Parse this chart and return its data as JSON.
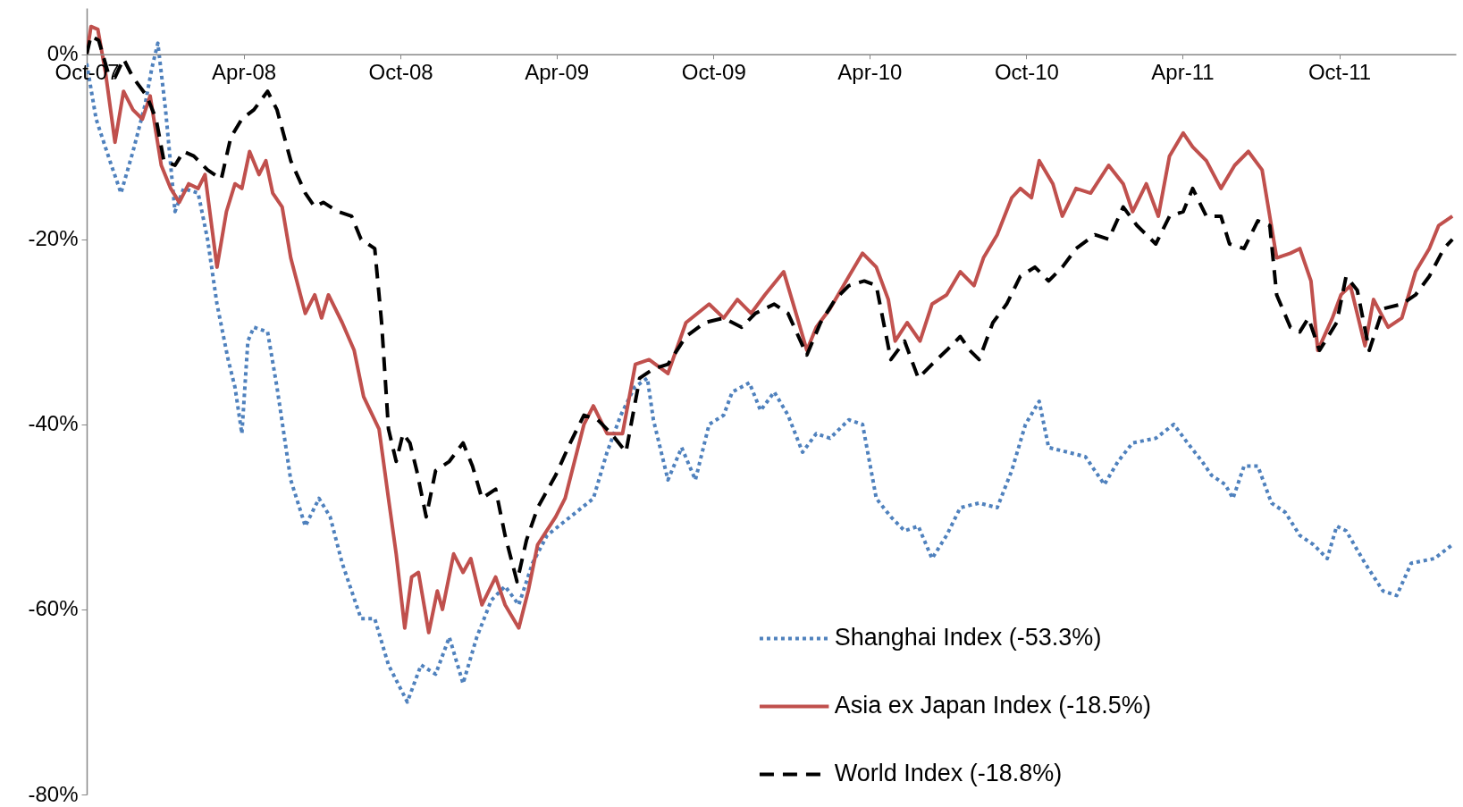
{
  "chart_data": {
    "type": "line",
    "xlim": [
      "2007-10-01",
      "2012-02-14"
    ],
    "ylim": [
      -80,
      5
    ],
    "xticks": [
      {
        "value": "2007-10-01",
        "label": "Oct-07"
      },
      {
        "value": "2008-04-01",
        "label": "Apr-08"
      },
      {
        "value": "2008-10-01",
        "label": "Oct-08"
      },
      {
        "value": "2009-04-01",
        "label": "Apr-09"
      },
      {
        "value": "2009-10-01",
        "label": "Oct-09"
      },
      {
        "value": "2010-04-01",
        "label": "Apr-10"
      },
      {
        "value": "2010-10-01",
        "label": "Oct-10"
      },
      {
        "value": "2011-04-01",
        "label": "Apr-11"
      },
      {
        "value": "2011-10-01",
        "label": "Oct-11"
      }
    ],
    "yticks": [
      {
        "value": 0,
        "label": "0%"
      },
      {
        "value": -20,
        "label": "-20%"
      },
      {
        "value": -40,
        "label": "-40%"
      },
      {
        "value": -60,
        "label": "-60%"
      },
      {
        "value": -80,
        "label": "-80%"
      }
    ],
    "legend": "bottom right",
    "series": [
      {
        "name": "Shanghai Index (-53.3%)",
        "color": "#4f81bd",
        "line_style": "dotted",
        "x": [
          "2007-10-01",
          "2007-10-12",
          "2007-10-28",
          "2007-11-10",
          "2007-11-24",
          "2007-12-08",
          "2007-12-16",
          "2007-12-23",
          "2008-01-01",
          "2008-01-12",
          "2008-01-22",
          "2008-02-08",
          "2008-02-19",
          "2008-03-01",
          "2008-03-14",
          "2008-03-22",
          "2008-03-30",
          "2008-04-06",
          "2008-04-13",
          "2008-04-29",
          "2008-05-10",
          "2008-05-26",
          "2008-06-12",
          "2008-06-28",
          "2008-07-11",
          "2008-07-25",
          "2008-08-16",
          "2008-09-01",
          "2008-09-17",
          "2008-10-09",
          "2008-10-25",
          "2008-11-11",
          "2008-11-27",
          "2008-12-13",
          "2008-12-29",
          "2009-01-15",
          "2009-01-31",
          "2009-02-16",
          "2009-03-04",
          "2009-03-21",
          "2009-04-17",
          "2009-05-14",
          "2009-05-30",
          "2009-06-15",
          "2009-07-01",
          "2009-07-16",
          "2009-07-23",
          "2009-08-09",
          "2009-08-25",
          "2009-09-10",
          "2009-09-26",
          "2009-10-13",
          "2009-10-23",
          "2009-11-12",
          "2009-11-25",
          "2009-12-11",
          "2009-12-27",
          "2010-01-13",
          "2010-01-29",
          "2010-02-14",
          "2010-03-08",
          "2010-03-24",
          "2010-04-09",
          "2010-04-26",
          "2010-05-12",
          "2010-05-28",
          "2010-06-13",
          "2010-06-30",
          "2010-07-16",
          "2010-08-07",
          "2010-08-28",
          "2010-09-14",
          "2010-09-30",
          "2010-10-16",
          "2010-10-27",
          "2010-11-18",
          "2010-12-09",
          "2010-12-31",
          "2011-01-16",
          "2011-02-02",
          "2011-03-01",
          "2011-03-22",
          "2011-04-07",
          "2011-04-24",
          "2011-05-05",
          "2011-05-21",
          "2011-05-30",
          "2011-06-12",
          "2011-06-28",
          "2011-07-14",
          "2011-07-30",
          "2011-08-16",
          "2011-09-01",
          "2011-09-17",
          "2011-09-28",
          "2011-10-09",
          "2011-10-31",
          "2011-11-21",
          "2011-12-07",
          "2011-12-24",
          "2012-01-20",
          "2012-02-10"
        ],
        "values": [
          -1,
          -7,
          -11.5,
          -15,
          -10.5,
          -5.5,
          -1.5,
          1.2,
          -6,
          -17,
          -14.5,
          -15,
          -20,
          -27,
          -33,
          -36,
          -41,
          -31,
          -29.5,
          -30,
          -36,
          -46,
          -51,
          -48,
          -50,
          -55,
          -61,
          -61,
          -66,
          -70,
          -66,
          -67,
          -63,
          -68,
          -63,
          -59,
          -57.5,
          -59.5,
          -55,
          -52,
          -50,
          -48,
          -43,
          -39,
          -36,
          -35,
          -39.5,
          -46,
          -42.5,
          -46,
          -40,
          -39,
          -36.5,
          -35.5,
          -38.5,
          -36.5,
          -39,
          -43,
          -41,
          -41.5,
          -39.5,
          -40,
          -48,
          -50,
          -51.5,
          -51,
          -54.5,
          -52,
          -49,
          -48.5,
          -49,
          -45,
          -40,
          -37.5,
          -42.5,
          -43,
          -43.5,
          -46.5,
          -44,
          -42,
          -41.5,
          -40,
          -42,
          -44,
          -45.5,
          -46.5,
          -48,
          -44.5,
          -44.5,
          -48.5,
          -49.5,
          -52,
          -53,
          -54.5,
          -51,
          -51.5,
          -55,
          -58,
          -58.5,
          -55,
          -54.5,
          -53
        ]
      },
      {
        "name": "Asia ex Japan Index (-18.5%)",
        "color": "#c0504d",
        "line_style": "solid",
        "x": [
          "2007-10-01",
          "2007-10-06",
          "2007-10-14",
          "2007-10-23",
          "2007-11-03",
          "2007-11-13",
          "2007-11-24",
          "2007-12-05",
          "2007-12-14",
          "2007-12-27",
          "2008-01-07",
          "2008-01-17",
          "2008-01-28",
          "2008-02-08",
          "2008-02-16",
          "2008-03-01",
          "2008-03-12",
          "2008-03-22",
          "2008-03-30",
          "2008-04-08",
          "2008-04-19",
          "2008-04-27",
          "2008-05-05",
          "2008-05-16",
          "2008-05-26",
          "2008-06-12",
          "2008-06-23",
          "2008-07-01",
          "2008-07-09",
          "2008-07-25",
          "2008-08-08",
          "2008-08-19",
          "2008-09-06",
          "2008-09-17",
          "2008-09-26",
          "2008-10-06",
          "2008-10-14",
          "2008-10-22",
          "2008-11-03",
          "2008-11-13",
          "2008-11-19",
          "2008-12-02",
          "2008-12-13",
          "2008-12-22",
          "2009-01-04",
          "2009-01-20",
          "2009-01-31",
          "2009-02-16",
          "2009-02-27",
          "2009-03-10",
          "2009-03-31",
          "2009-04-11",
          "2009-04-22",
          "2009-05-03",
          "2009-05-14",
          "2009-05-30",
          "2009-06-17",
          "2009-07-02",
          "2009-07-18",
          "2009-08-09",
          "2009-08-30",
          "2009-09-26",
          "2009-10-13",
          "2009-10-29",
          "2009-11-14",
          "2009-11-30",
          "2009-12-22",
          "2010-01-07",
          "2010-01-18",
          "2010-01-29",
          "2010-02-14",
          "2010-03-08",
          "2010-03-24",
          "2010-04-09",
          "2010-04-23",
          "2010-05-01",
          "2010-05-15",
          "2010-05-30",
          "2010-06-13",
          "2010-06-30",
          "2010-07-16",
          "2010-08-01",
          "2010-08-12",
          "2010-08-28",
          "2010-09-14",
          "2010-09-24",
          "2010-10-07",
          "2010-10-16",
          "2010-11-01",
          "2010-11-12",
          "2010-11-28",
          "2010-12-15",
          "2011-01-05",
          "2011-01-22",
          "2011-02-02",
          "2011-02-18",
          "2011-03-04",
          "2011-03-17",
          "2011-04-02",
          "2011-04-13",
          "2011-04-29",
          "2011-05-16",
          "2011-06-01",
          "2011-06-17",
          "2011-07-03",
          "2011-07-20",
          "2011-08-05",
          "2011-08-16",
          "2011-08-29",
          "2011-09-06",
          "2011-09-23",
          "2011-10-03",
          "2011-10-14",
          "2011-10-31",
          "2011-11-10",
          "2011-11-27",
          "2011-12-13",
          "2011-12-29",
          "2012-01-14",
          "2012-01-25",
          "2012-02-10"
        ],
        "values": [
          0,
          3,
          2.7,
          -2,
          -9.5,
          -4,
          -6,
          -7,
          -4.5,
          -12,
          -14.5,
          -16,
          -14,
          -14.5,
          -13,
          -23,
          -17,
          -14,
          -14.5,
          -10.5,
          -13,
          -11.5,
          -15,
          -16.5,
          -22,
          -28,
          -26,
          -28.5,
          -26,
          -29,
          -32,
          -37,
          -40.5,
          -48,
          -54,
          -62,
          -56.5,
          -56,
          -62.5,
          -58,
          -60,
          -54,
          -56,
          -54.5,
          -59.5,
          -56.5,
          -59.5,
          -62,
          -58,
          -53,
          -50,
          -48,
          -44,
          -40,
          -38,
          -41,
          -41,
          -33.5,
          -33,
          -34.5,
          -29,
          -27,
          -28.5,
          -26.5,
          -28,
          -26,
          -23.5,
          -28.5,
          -32,
          -29.5,
          -27.5,
          -24,
          -21.5,
          -23,
          -26.5,
          -31,
          -29,
          -31,
          -27,
          -26,
          -23.5,
          -25,
          -22,
          -19.5,
          -15.5,
          -14.5,
          -15.5,
          -11.5,
          -14,
          -17.5,
          -14.5,
          -15,
          -12,
          -14,
          -17,
          -14,
          -17.5,
          -11,
          -8.5,
          -10,
          -11.5,
          -14.5,
          -12,
          -10.5,
          -12.5,
          -22,
          -21.5,
          -21,
          -24.5,
          -32,
          -28.5,
          -26,
          -25,
          -31.5,
          -26.5,
          -29.5,
          -28.5,
          -23.5,
          -21,
          -18.5,
          -17.5
        ]
      },
      {
        "name": "World Index (-18.8%)",
        "color": "#000000",
        "line_style": "dashed",
        "x": [
          "2007-10-01",
          "2007-10-06",
          "2007-10-15",
          "2007-10-26",
          "2007-11-03",
          "2007-11-13",
          "2007-11-24",
          "2007-12-10",
          "2007-12-21",
          "2007-12-30",
          "2008-01-12",
          "2008-01-22",
          "2008-02-03",
          "2008-02-19",
          "2008-03-06",
          "2008-03-17",
          "2008-03-30",
          "2008-04-13",
          "2008-04-29",
          "2008-05-10",
          "2008-05-26",
          "2008-06-12",
          "2008-06-23",
          "2008-07-03",
          "2008-07-20",
          "2008-08-05",
          "2008-08-16",
          "2008-09-01",
          "2008-09-09",
          "2008-09-17",
          "2008-09-26",
          "2008-10-04",
          "2008-10-12",
          "2008-10-20",
          "2008-10-31",
          "2008-11-11",
          "2008-11-27",
          "2008-12-13",
          "2008-12-24",
          "2009-01-04",
          "2009-01-20",
          "2009-01-31",
          "2009-02-14",
          "2009-02-25",
          "2009-03-10",
          "2009-03-31",
          "2009-04-17",
          "2009-05-03",
          "2009-05-19",
          "2009-06-04",
          "2009-06-21",
          "2009-07-07",
          "2009-07-23",
          "2009-08-09",
          "2009-08-30",
          "2009-09-21",
          "2009-10-13",
          "2009-11-03",
          "2009-11-19",
          "2009-12-11",
          "2009-12-27",
          "2010-01-18",
          "2010-02-03",
          "2010-02-20",
          "2010-03-08",
          "2010-03-26",
          "2010-04-09",
          "2010-04-26",
          "2010-05-12",
          "2010-05-28",
          "2010-06-13",
          "2010-06-30",
          "2010-07-16",
          "2010-07-27",
          "2010-08-07",
          "2010-08-23",
          "2010-09-08",
          "2010-09-24",
          "2010-10-11",
          "2010-10-27",
          "2010-11-12",
          "2010-11-28",
          "2010-12-20",
          "2011-01-05",
          "2011-01-22",
          "2011-02-07",
          "2011-03-01",
          "2011-03-17",
          "2011-04-02",
          "2011-04-13",
          "2011-04-29",
          "2011-05-16",
          "2011-05-26",
          "2011-06-12",
          "2011-06-28",
          "2011-07-12",
          "2011-07-20",
          "2011-08-05",
          "2011-08-16",
          "2011-08-26",
          "2011-09-08",
          "2011-09-28",
          "2011-10-09",
          "2011-10-22",
          "2011-11-05",
          "2011-11-21",
          "2011-12-13",
          "2011-12-29",
          "2012-01-14",
          "2012-01-31",
          "2012-02-10"
        ],
        "values": [
          0,
          2,
          1.5,
          -2,
          -2.5,
          -0.5,
          -2.5,
          -4.5,
          -7,
          -11.5,
          -12,
          -10.5,
          -11,
          -12.5,
          -13.5,
          -9,
          -7,
          -6,
          -4,
          -6,
          -11.5,
          -15,
          -16.5,
          -16,
          -17,
          -17.5,
          -20,
          -21,
          -29,
          -40.5,
          -44,
          -41,
          -42,
          -45,
          -50,
          -45,
          -44,
          -42,
          -44.5,
          -48,
          -47,
          -52,
          -57,
          -52.5,
          -49,
          -45.5,
          -42,
          -39,
          -39.5,
          -41,
          -43,
          -35,
          -34,
          -33.5,
          -30.5,
          -29,
          -28.5,
          -29.5,
          -28,
          -27,
          -28,
          -32.5,
          -29,
          -26.5,
          -25,
          -24.5,
          -25,
          -33,
          -31,
          -35,
          -33.5,
          -32,
          -30.5,
          -32,
          -33,
          -29,
          -27,
          -24,
          -23,
          -24.5,
          -23,
          -21,
          -19.5,
          -20,
          -16.5,
          -18.5,
          -20.5,
          -17.5,
          -17,
          -14.5,
          -17.5,
          -17.5,
          -20.5,
          -21,
          -18,
          -18.5,
          -26,
          -29.5,
          -30,
          -28.5,
          -32,
          -29,
          -24,
          -25.5,
          -32,
          -27.5,
          -27,
          -26,
          -24,
          -21,
          -20
        ]
      }
    ]
  }
}
